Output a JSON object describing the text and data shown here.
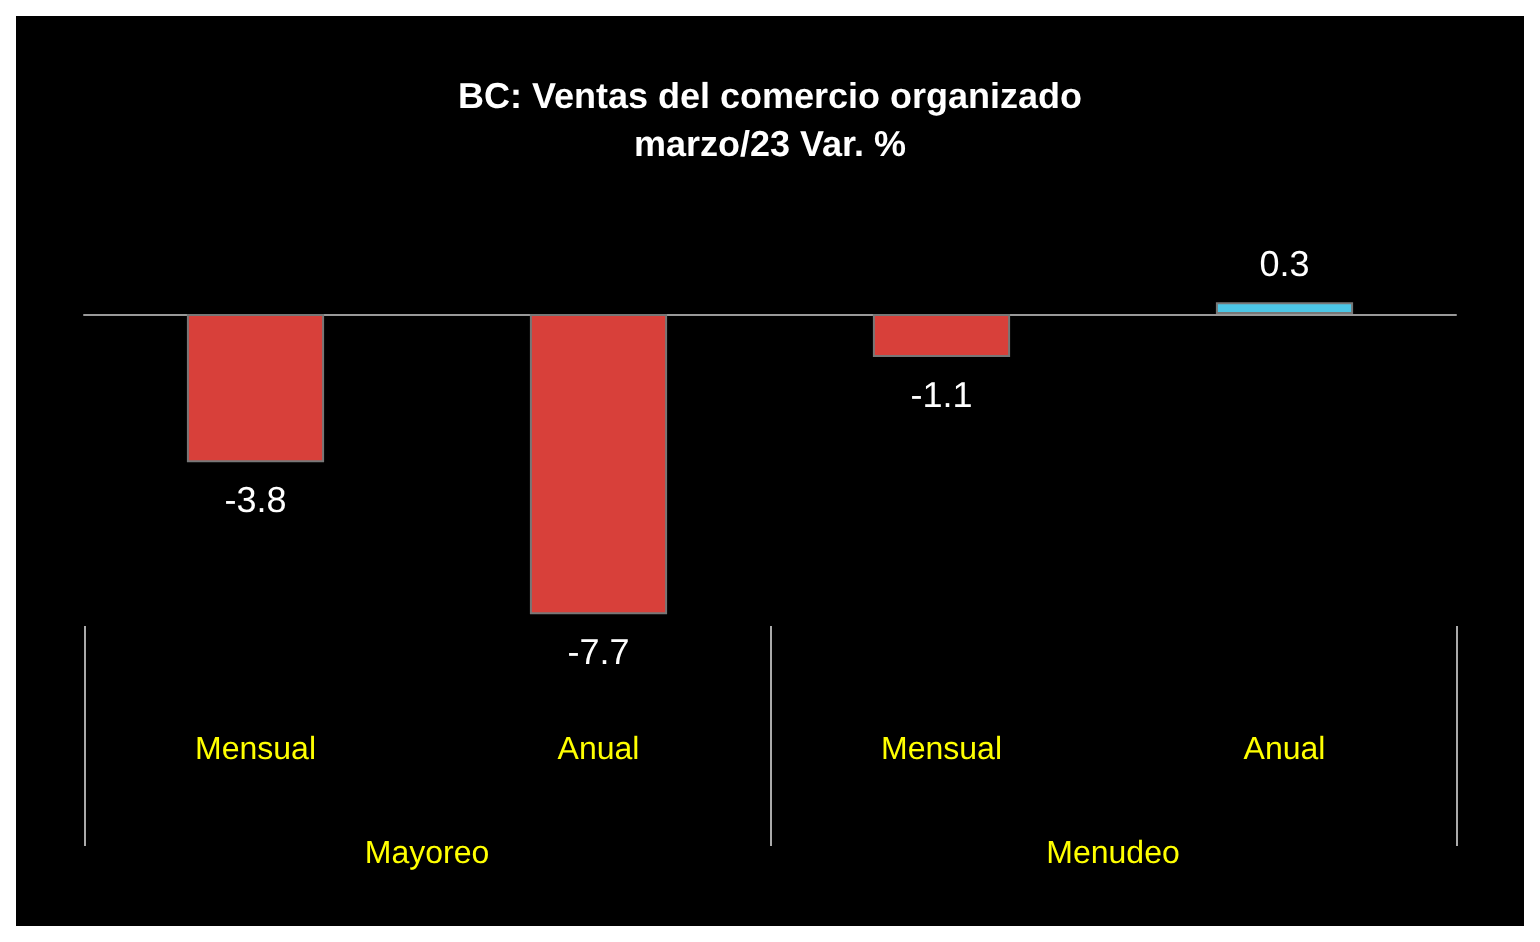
{
  "chart_data": {
    "type": "bar",
    "title": "BC: Ventas del comercio organizado",
    "subtitle": "marzo/23 Var. %",
    "categories": [
      "Mensual",
      "Anual",
      "Mensual",
      "Anual"
    ],
    "values": [
      -3.8,
      -7.7,
      -1.1,
      0.3
    ],
    "colors": [
      "#d8403a",
      "#d8403a",
      "#d8403a",
      "#4cc6e6"
    ],
    "annotations": [
      "Mayoreo",
      "Menudeo"
    ],
    "data_labels": true
  }
}
